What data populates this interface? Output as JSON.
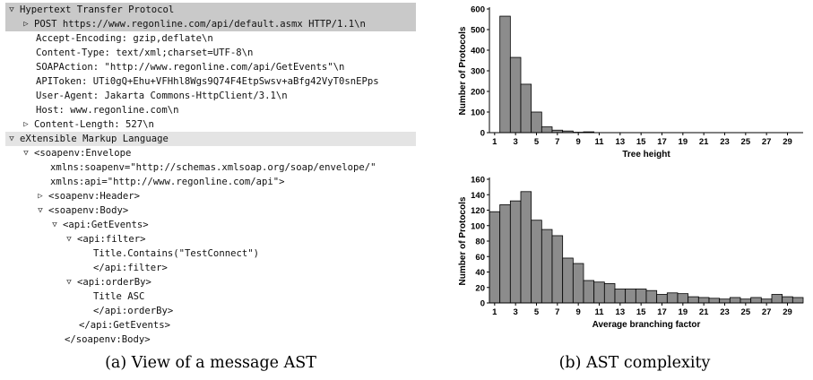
{
  "tree": [
    {
      "indent": 0,
      "toggle": "open",
      "text": "Hypertext Transfer Protocol",
      "highlight": "dark"
    },
    {
      "indent": 1,
      "toggle": "closed",
      "text": "POST https://www.regonline.com/api/default.asmx HTTP/1.1\\n",
      "highlight": "dark"
    },
    {
      "indent": 2,
      "toggle": "",
      "text": "Accept-Encoding: gzip,deflate\\n",
      "highlight": ""
    },
    {
      "indent": 2,
      "toggle": "",
      "text": "Content-Type: text/xml;charset=UTF-8\\n",
      "highlight": ""
    },
    {
      "indent": 2,
      "toggle": "",
      "text": "SOAPAction: \"http://www.regonline.com/api/GetEvents\"\\n",
      "highlight": ""
    },
    {
      "indent": 2,
      "toggle": "",
      "text": "APIToken: UTi0gQ+Ehu+VFHhl8Wgs9Q74F4EtpSwsv+aBfg42VyT0snEPps",
      "highlight": ""
    },
    {
      "indent": 2,
      "toggle": "",
      "text": "User-Agent: Jakarta Commons-HttpClient/3.1\\n",
      "highlight": ""
    },
    {
      "indent": 2,
      "toggle": "",
      "text": "Host: www.regonline.com\\n",
      "highlight": ""
    },
    {
      "indent": 1,
      "toggle": "closed",
      "text": "Content-Length: 527\\n",
      "highlight": ""
    },
    {
      "indent": 0,
      "toggle": "open",
      "text": "eXtensible Markup Language",
      "highlight": "light"
    },
    {
      "indent": 1,
      "toggle": "open",
      "text": "<soapenv:Envelope",
      "highlight": ""
    },
    {
      "indent": 3,
      "toggle": "",
      "text": "xmlns:soapenv=\"http://schemas.xmlsoap.org/soap/envelope/\"",
      "highlight": ""
    },
    {
      "indent": 3,
      "toggle": "",
      "text": "xmlns:api=\"http://www.regonline.com/api\">",
      "highlight": ""
    },
    {
      "indent": 2,
      "toggle": "closed",
      "text": "<soapenv:Header>",
      "highlight": ""
    },
    {
      "indent": 2,
      "toggle": "open",
      "text": "<soapenv:Body>",
      "highlight": ""
    },
    {
      "indent": 3,
      "toggle": "open",
      "text": "<api:GetEvents>",
      "highlight": ""
    },
    {
      "indent": 4,
      "toggle": "open",
      "text": "<api:filter>",
      "highlight": ""
    },
    {
      "indent": 6,
      "toggle": "",
      "text": "Title.Contains(\"TestConnect\")",
      "highlight": ""
    },
    {
      "indent": 6,
      "toggle": "",
      "text": "</api:filter>",
      "highlight": ""
    },
    {
      "indent": 4,
      "toggle": "open",
      "text": "<api:orderBy>",
      "highlight": ""
    },
    {
      "indent": 6,
      "toggle": "",
      "text": "Title ASC",
      "highlight": ""
    },
    {
      "indent": 6,
      "toggle": "",
      "text": "</api:orderBy>",
      "highlight": ""
    },
    {
      "indent": 5,
      "toggle": "",
      "text": "</api:GetEvents>",
      "highlight": ""
    },
    {
      "indent": 4,
      "toggle": "",
      "text": "</soapenv:Body>",
      "highlight": ""
    }
  ],
  "captions": {
    "a": "(a) View of a message AST",
    "b": "(b) AST complexity"
  },
  "chart_data": [
    {
      "type": "bar",
      "xlabel": "Tree height",
      "ylabel": "Number of Protocols",
      "ylim": [
        0,
        600
      ],
      "yticks": [
        0,
        100,
        200,
        300,
        400,
        500,
        600
      ],
      "categories": [
        "1",
        "2",
        "3",
        "4",
        "5",
        "6",
        "7",
        "8",
        "9",
        "10",
        "11",
        "12",
        "13",
        "14",
        "15",
        "16",
        "17",
        "18",
        "19",
        "20",
        "21",
        "22",
        "23",
        "24",
        "25",
        "26",
        "27",
        "28",
        "29",
        "30"
      ],
      "xtick_labels": [
        "1",
        "3",
        "5",
        "7",
        "9",
        "11",
        "13",
        "15",
        "17",
        "19",
        "21",
        "23",
        "25",
        "27",
        "29"
      ],
      "values": [
        0,
        565,
        365,
        235,
        100,
        28,
        12,
        8,
        2,
        4,
        0,
        0,
        0,
        0,
        0,
        0,
        0,
        0,
        0,
        0,
        0,
        0,
        0,
        0,
        0,
        0,
        0,
        0,
        0,
        0
      ],
      "grid": false,
      "bar_color": "#8c8c8c"
    },
    {
      "type": "bar",
      "xlabel": "Average branching factor",
      "ylabel": "Number of Protocols",
      "ylim": [
        0,
        160
      ],
      "yticks": [
        0,
        20,
        40,
        60,
        80,
        100,
        120,
        140,
        160
      ],
      "categories": [
        "1",
        "2",
        "3",
        "4",
        "5",
        "6",
        "7",
        "8",
        "9",
        "10",
        "11",
        "12",
        "13",
        "14",
        "15",
        "16",
        "17",
        "18",
        "19",
        "20",
        "21",
        "22",
        "23",
        "24",
        "25",
        "26",
        "27",
        "28",
        "29",
        "30"
      ],
      "xtick_labels": [
        "1",
        "3",
        "5",
        "7",
        "9",
        "11",
        "13",
        "15",
        "17",
        "19",
        "21",
        "23",
        "25",
        "27",
        "29"
      ],
      "values": [
        118,
        127,
        132,
        144,
        107,
        95,
        87,
        58,
        51,
        29,
        27,
        25,
        18,
        18,
        18,
        16,
        11,
        13,
        12,
        8,
        7,
        6,
        5,
        7,
        5,
        7,
        5,
        11,
        8,
        7
      ],
      "grid": false,
      "bar_color": "#8c8c8c"
    }
  ]
}
